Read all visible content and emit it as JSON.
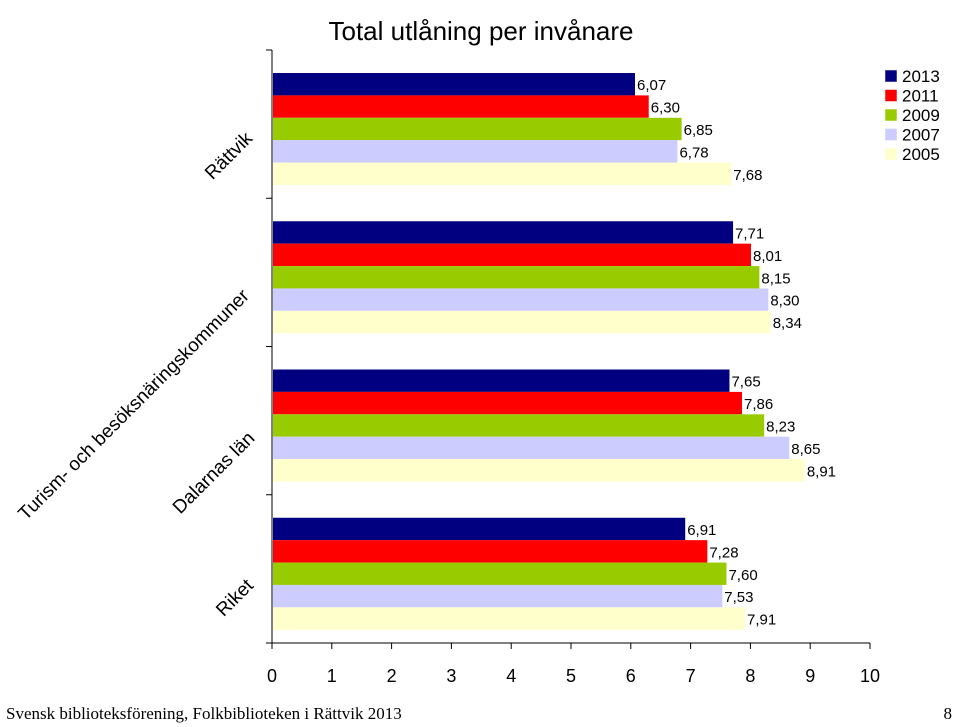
{
  "chart_data": {
    "type": "bar",
    "orientation": "horizontal",
    "title": "Total utlåning per invånare",
    "categories": [
      "Rättvik",
      "Turism- och besöksnäringskommuner",
      "Dalarnas län",
      "Riket"
    ],
    "series": [
      {
        "name": "2013",
        "color": "#000080",
        "values": [
          6.07,
          7.71,
          7.65,
          6.91
        ],
        "labels": [
          "6,07",
          "7,71",
          "7,65",
          "6,91"
        ]
      },
      {
        "name": "2011",
        "color": "#FF0000",
        "values": [
          6.3,
          8.01,
          7.86,
          7.28
        ],
        "labels": [
          "6,30",
          "8,01",
          "7,86",
          "7,28"
        ]
      },
      {
        "name": "2009",
        "color": "#99CC00",
        "values": [
          6.85,
          8.15,
          8.23,
          7.6
        ],
        "labels": [
          "6,85",
          "8,15",
          "8,23",
          "7,60"
        ]
      },
      {
        "name": "2007",
        "color": "#CCCCFF",
        "values": [
          6.78,
          8.3,
          8.65,
          7.53
        ],
        "labels": [
          "6,78",
          "8,30",
          "8,65",
          "7,53"
        ]
      },
      {
        "name": "2005",
        "color": "#FFFFCC",
        "values": [
          7.68,
          8.34,
          8.91,
          7.91
        ],
        "labels": [
          "7,68",
          "8,34",
          "8,91",
          "7,91"
        ]
      }
    ],
    "xlim": [
      0,
      10
    ],
    "xticks": [
      "0",
      "1",
      "2",
      "3",
      "4",
      "5",
      "6",
      "7",
      "8",
      "9",
      "10"
    ],
    "grid": false,
    "legend": "top-right"
  },
  "footer": {
    "text": "Svensk biblioteksförening, Folkbiblioteken i Rättvik 2013",
    "page": "8"
  }
}
